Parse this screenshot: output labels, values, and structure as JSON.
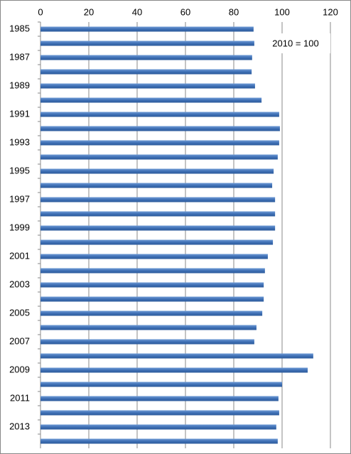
{
  "chart_data": {
    "type": "bar",
    "orientation": "horizontal",
    "annotation": "2010 = 100",
    "categories": [
      "1985",
      null,
      "1987",
      null,
      "1989",
      null,
      "1991",
      null,
      "1993",
      null,
      "1995",
      null,
      "1997",
      null,
      "1999",
      null,
      "2001",
      null,
      "2003",
      null,
      "2005",
      null,
      "2007",
      null,
      "2009",
      null,
      "2011",
      null,
      "2013",
      null
    ],
    "values": [
      88.2,
      88.5,
      87.6,
      87.4,
      88.8,
      91.5,
      98.8,
      99.1,
      98.8,
      98.2,
      96.5,
      95.9,
      97.1,
      97.1,
      97.1,
      96.2,
      94.1,
      92.9,
      92.4,
      92.4,
      91.8,
      89.4,
      88.5,
      112.9,
      110.6,
      100,
      98.5,
      98.8,
      97.6,
      98.2
    ],
    "color": "#4a7ebb",
    "xlim": [
      0,
      120
    ],
    "xticks": [
      0,
      20,
      40,
      60,
      80,
      100,
      120
    ],
    "grid": true
  }
}
